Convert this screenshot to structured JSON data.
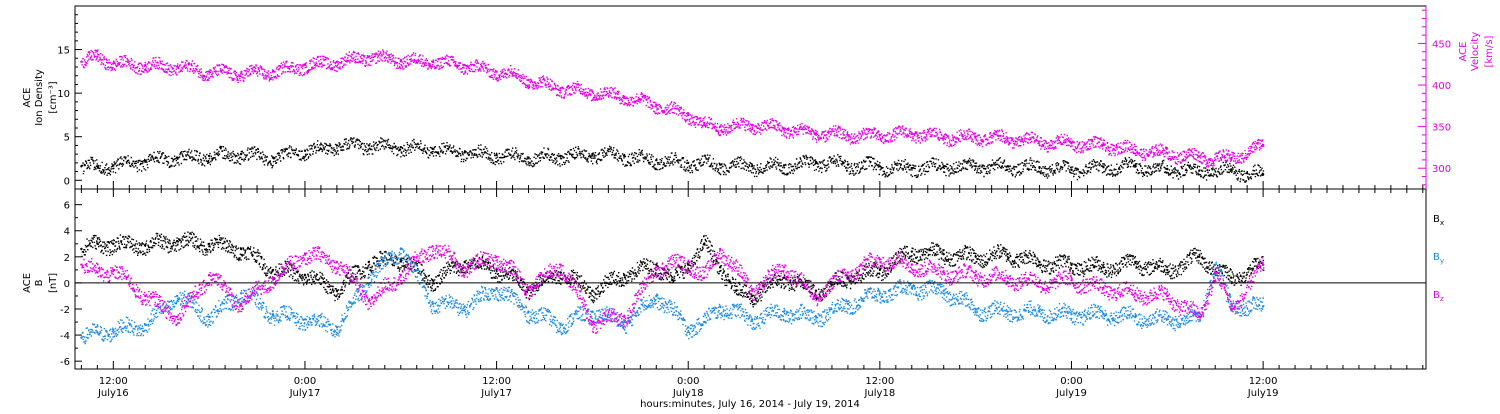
{
  "colors": {
    "black": "#000000",
    "magenta": "#e600e6",
    "blue": "#1e8ce6"
  },
  "x_axis": {
    "title": "hours:minutes, July 16, 2014 - July 19, 2014",
    "ticks": [
      {
        "hours": 12,
        "time": "12:00",
        "date": "July16"
      },
      {
        "hours": 24,
        "time": "0:00",
        "date": "July17"
      },
      {
        "hours": 36,
        "time": "12:00",
        "date": "July17"
      },
      {
        "hours": 48,
        "time": "0:00",
        "date": "July18"
      },
      {
        "hours": 60,
        "time": "12:00",
        "date": "July18"
      },
      {
        "hours": 72,
        "time": "0:00",
        "date": "July19"
      },
      {
        "hours": 84,
        "time": "12:00",
        "date": "July19"
      }
    ]
  },
  "chart_data": [
    {
      "type": "scatter",
      "panel": "plasma",
      "xlim_hours": [
        9.6,
        94.2
      ],
      "x_unit": "hours since 0:00 July 16, 2014",
      "left_axis": {
        "label_lines": [
          "ACE",
          "Ion Density",
          "[cm⁻³]"
        ],
        "ylim": [
          -1,
          20
        ],
        "ticks": [
          "0",
          "5",
          "10",
          "15"
        ]
      },
      "right_axis": {
        "label_lines": [
          "ACE",
          "Velocity",
          "[km/s]"
        ],
        "ylim": [
          275,
          495
        ],
        "ticks": [
          "300",
          "350",
          "400",
          "450"
        ]
      },
      "series": [
        {
          "name": "Ion Density",
          "color": "#000000",
          "x": [
            10,
            11,
            12,
            14,
            16,
            18,
            20,
            22,
            24,
            25,
            26,
            28,
            30,
            32,
            34,
            36,
            38,
            40,
            42,
            44,
            46,
            48,
            50,
            52,
            54,
            56,
            58,
            60,
            62,
            64,
            66,
            68,
            70,
            72,
            74,
            76,
            78,
            80,
            82,
            83,
            84
          ],
          "y": [
            1.6,
            1.6,
            1.7,
            2.2,
            2.6,
            2.8,
            3.0,
            2.6,
            3.4,
            3.6,
            4.0,
            4.0,
            3.8,
            3.6,
            3.2,
            2.9,
            2.6,
            2.8,
            3.0,
            2.8,
            2.3,
            2.0,
            1.8,
            1.6,
            1.7,
            2.1,
            1.8,
            1.6,
            1.4,
            1.6,
            1.6,
            1.6,
            1.5,
            1.2,
            1.5,
            1.7,
            1.3,
            1.1,
            1.2,
            0.8,
            0.7
          ]
        },
        {
          "name": "Velocity",
          "color": "#e600e6",
          "x": [
            10,
            11,
            12,
            14,
            16,
            18,
            20,
            22,
            24,
            26,
            28,
            30,
            32,
            34,
            36,
            37,
            38,
            40,
            42,
            44,
            46,
            48,
            49,
            50,
            52,
            54,
            56,
            58,
            60,
            62,
            64,
            66,
            68,
            70,
            72,
            74,
            76,
            78,
            80,
            82,
            84
          ],
          "y": [
            428,
            434,
            426,
            424,
            422,
            416,
            414,
            416,
            424,
            428,
            434,
            430,
            428,
            424,
            416,
            414,
            406,
            396,
            392,
            386,
            376,
            364,
            352,
            350,
            352,
            348,
            342,
            340,
            340,
            342,
            338,
            338,
            336,
            332,
            330,
            328,
            322,
            318,
            314,
            312,
            328
          ]
        }
      ]
    },
    {
      "type": "scatter",
      "panel": "magnetic-field",
      "xlim_hours": [
        9.6,
        94.2
      ],
      "x_unit": "hours since 0:00 July 16, 2014",
      "left_axis": {
        "label_lines": [
          "ACE",
          "B",
          "[nT]"
        ],
        "ylim": [
          -6.6,
          7.2
        ],
        "ticks": [
          "6",
          "4",
          "2",
          "0",
          "-2",
          "-4",
          "-6"
        ]
      },
      "zero_line": true,
      "legend_placement": "right",
      "series": [
        {
          "name": "Bx",
          "color": "#000000",
          "x": [
            10,
            11,
            12,
            14,
            16,
            18,
            20,
            22,
            24,
            26,
            28,
            30,
            32,
            34,
            36,
            38,
            40,
            42,
            44,
            46,
            47,
            48,
            49,
            50,
            51,
            52,
            54,
            56,
            58,
            60,
            62,
            64,
            66,
            68,
            70,
            72,
            74,
            76,
            78,
            80,
            82,
            84
          ],
          "y": [
            2.6,
            3.0,
            3.0,
            2.9,
            3.2,
            3.0,
            2.6,
            1.0,
            0.6,
            -0.6,
            1.6,
            1.8,
            0.2,
            1.6,
            1.0,
            -0.4,
            0.8,
            -0.6,
            0.6,
            1.4,
            0.2,
            1.4,
            3.0,
            1.2,
            -0.6,
            -1.0,
            0.4,
            -0.6,
            0.4,
            1.0,
            2.4,
            2.2,
            2.0,
            2.2,
            1.6,
            1.4,
            1.2,
            1.6,
            1.0,
            2.0,
            0.4,
            1.4
          ]
        },
        {
          "name": "By",
          "color": "#1e8ce6",
          "x": [
            10,
            11,
            12,
            14,
            16,
            18,
            20,
            22,
            24,
            26,
            28,
            30,
            32,
            34,
            36,
            38,
            40,
            42,
            44,
            46,
            48,
            49,
            50,
            52,
            54,
            56,
            58,
            60,
            62,
            64,
            66,
            68,
            70,
            72,
            74,
            76,
            78,
            80,
            81,
            82,
            84
          ],
          "y": [
            -4.2,
            -3.8,
            -3.6,
            -3.2,
            -1.0,
            -2.6,
            -0.8,
            -2.4,
            -2.8,
            -3.4,
            0.4,
            2.6,
            -1.6,
            -1.8,
            -0.4,
            -2.2,
            -3.2,
            -2.2,
            -3.0,
            -1.0,
            -3.4,
            -3.0,
            -1.8,
            -2.8,
            -2.2,
            -2.6,
            -1.6,
            -0.8,
            -0.4,
            -0.6,
            -2.0,
            -2.2,
            -2.2,
            -2.4,
            -2.4,
            -2.6,
            -2.8,
            -2.6,
            1.4,
            -1.8,
            -1.8
          ]
        },
        {
          "name": "Bz",
          "color": "#e600e6",
          "x": [
            10,
            11,
            12,
            14,
            16,
            18,
            20,
            22,
            24,
            26,
            28,
            30,
            32,
            34,
            36,
            38,
            40,
            42,
            44,
            46,
            48,
            49,
            50,
            52,
            54,
            56,
            58,
            60,
            62,
            64,
            66,
            68,
            70,
            72,
            74,
            76,
            78,
            80,
            81,
            82,
            84
          ],
          "y": [
            1.4,
            0.8,
            1.0,
            -1.0,
            -2.6,
            0.6,
            -1.6,
            0.4,
            2.2,
            1.6,
            -1.4,
            0.6,
            2.8,
            1.2,
            2.0,
            -0.4,
            1.4,
            -3.0,
            -2.6,
            1.2,
            1.6,
            0.4,
            2.6,
            -0.6,
            1.2,
            -1.0,
            0.8,
            1.8,
            1.4,
            0.8,
            0.6,
            0.4,
            0.0,
            0.2,
            -0.4,
            -0.8,
            -1.0,
            -2.6,
            0.8,
            -2.0,
            1.4
          ]
        }
      ],
      "legend": [
        "B",
        "B",
        "B"
      ],
      "legend_subscripts": [
        "x",
        "y",
        "z"
      ]
    }
  ]
}
